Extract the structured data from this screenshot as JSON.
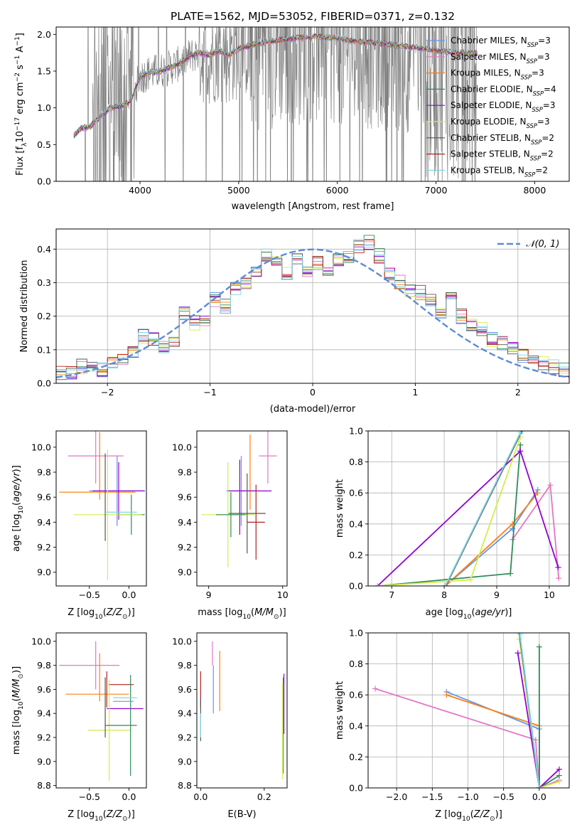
{
  "figure": {
    "title": "PLATE=1562, MJD=53052, FIBERID=0371, z=0.132"
  },
  "chart_data": [
    {
      "id": "spectrum",
      "type": "line",
      "title": "PLATE=1562, MJD=53052, FIBERID=0371, z=0.132",
      "xlabel": "wavelength [Angstrom, rest frame]",
      "ylabel": "Flux [f_λ 10^-17 erg cm^-2 s^-1 A^-1]",
      "xlim": [
        3150,
        8350
      ],
      "ylim": [
        0,
        2.1
      ],
      "xticks": [
        4000,
        5000,
        6000,
        7000,
        8000
      ],
      "yticks": [
        0.0,
        0.5,
        1.0,
        1.5,
        2.0
      ],
      "grid": false,
      "legend_position": "top-right",
      "data_color": "#808080",
      "continuum": {
        "x": [
          3330,
          3400,
          3500,
          3600,
          3700,
          3800,
          3900,
          4000,
          4100,
          4200,
          4300,
          4400,
          4500,
          4600,
          4700,
          4800,
          4900,
          5000,
          5200,
          5400,
          5600,
          5800,
          6000,
          6200,
          6400,
          6600,
          6800,
          7000,
          7200,
          7400
        ],
        "y": [
          0.62,
          0.72,
          0.75,
          0.88,
          1.0,
          1.02,
          1.08,
          1.42,
          1.48,
          1.5,
          1.55,
          1.6,
          1.7,
          1.75,
          1.72,
          1.78,
          1.72,
          1.8,
          1.88,
          1.92,
          1.95,
          1.97,
          1.95,
          1.9,
          1.88,
          1.85,
          1.82,
          1.78,
          1.75,
          1.74
        ]
      },
      "series": [
        {
          "name": "Chabrier MILES, N_SSP=3",
          "color": "#6495ed"
        },
        {
          "name": "Salpeter MILES, N_SSP=3",
          "color": "#e377c2"
        },
        {
          "name": "Kroupa MILES, N_SSP=3",
          "color": "#ff7f0e"
        },
        {
          "name": "Chabrier ELODIE, N_SSP=4",
          "color": "#2e8b57"
        },
        {
          "name": "Salpeter ELODIE, N_SSP=3",
          "color": "#9400d3"
        },
        {
          "name": "Kroupa ELODIE, N_SSP=3",
          "color": "#d4ed4a"
        },
        {
          "name": "Chabrier STELIB, N_SSP=2",
          "color": "#555555"
        },
        {
          "name": "Salpeter STELIB, N_SSP=2",
          "color": "#b22222"
        },
        {
          "name": "Kroupa STELIB, N_SSP=2",
          "color": "#7fd8e6"
        }
      ]
    },
    {
      "id": "residuals",
      "type": "line",
      "xlabel": "(data-model)/error",
      "ylabel": "Normed distribution",
      "xlim": [
        -2.5,
        2.5
      ],
      "ylim": [
        0,
        0.46
      ],
      "xticks": [
        -2,
        -1,
        0,
        1,
        2
      ],
      "yticks": [
        0.0,
        0.1,
        0.2,
        0.3,
        0.4
      ],
      "grid": true,
      "legend_position": "top-right",
      "reference_curve": {
        "name": "N(0,1)",
        "color": "#5b8bd9",
        "style": "dashed"
      },
      "bin_edges": [
        -2.5,
        -2.4,
        -2.3,
        -2.2,
        -2.1,
        -2.0,
        -1.9,
        -1.8,
        -1.7,
        -1.6,
        -1.5,
        -1.4,
        -1.3,
        -1.2,
        -1.1,
        -1.0,
        -0.9,
        -0.8,
        -0.7,
        -0.6,
        -0.5,
        -0.4,
        -0.3,
        -0.2,
        -0.1,
        0.0,
        0.1,
        0.2,
        0.3,
        0.4,
        0.5,
        0.6,
        0.7,
        0.8,
        0.9,
        1.0,
        1.1,
        1.2,
        1.3,
        1.4,
        1.5,
        1.6,
        1.7,
        1.8,
        1.9,
        2.0,
        2.1,
        2.2,
        2.3,
        2.4,
        2.5
      ],
      "hist_base": [
        0.03,
        0.03,
        0.05,
        0.05,
        0.04,
        0.06,
        0.07,
        0.09,
        0.14,
        0.13,
        0.11,
        0.12,
        0.21,
        0.18,
        0.19,
        0.25,
        0.23,
        0.28,
        0.3,
        0.33,
        0.38,
        0.36,
        0.33,
        0.37,
        0.34,
        0.36,
        0.33,
        0.37,
        0.38,
        0.41,
        0.42,
        0.38,
        0.33,
        0.3,
        0.28,
        0.27,
        0.25,
        0.21,
        0.27,
        0.2,
        0.17,
        0.16,
        0.13,
        0.12,
        0.1,
        0.08,
        0.08,
        0.06,
        0.05,
        0.04
      ],
      "hist_colors": [
        "#6495ed",
        "#e377c2",
        "#ff7f0e",
        "#2e8b57",
        "#9400d3",
        "#d4ed4a",
        "#555555",
        "#b22222",
        "#7fd8e6"
      ]
    },
    {
      "id": "age-vs-Z",
      "type": "scatter",
      "xlabel": "Z [log10(Z/Z⊙)]",
      "ylabel": "age [log10(age/yr)]",
      "xlim": [
        -0.92,
        0.22
      ],
      "ylim": [
        8.89,
        10.13
      ],
      "xticks": [
        -0.5,
        0.0
      ],
      "yticks": [
        9.0,
        9.2,
        9.4,
        9.6,
        9.8,
        10.0
      ],
      "errorbars": [
        {
          "x": -0.15,
          "y": 9.65,
          "xerr": 0.35,
          "yerr": 0.28,
          "color": "#6495ed"
        },
        {
          "x": -0.42,
          "y": 9.93,
          "xerr": 0.35,
          "yerr": 0.22,
          "color": "#e377c2"
        },
        {
          "x": -0.37,
          "y": 9.85,
          "xerr": 0.0,
          "yerr": 0.27,
          "color": "#ff7f0e"
        },
        {
          "x": -0.4,
          "y": 9.64,
          "xerr": 0.48,
          "yerr": 0.0,
          "color": "#ff7f0e"
        },
        {
          "x": 0.03,
          "y": 9.46,
          "xerr": 0.17,
          "yerr": 0.16,
          "color": "#2e8b57"
        },
        {
          "x": -0.13,
          "y": 9.65,
          "xerr": 0.33,
          "yerr": 0.23,
          "color": "#9400d3"
        },
        {
          "x": -0.27,
          "y": 9.46,
          "xerr": 0.43,
          "yerr": 0.52,
          "color": "#d4ed4a"
        },
        {
          "x": -0.3,
          "y": 9.6,
          "xerr": 0.0,
          "yerr": 0.35,
          "color": "#555555"
        },
        {
          "x": -0.1,
          "y": 9.48,
          "xerr": 0.2,
          "yerr": 0.0,
          "color": "#7fd8e6"
        }
      ]
    },
    {
      "id": "age-vs-mass",
      "type": "scatter",
      "xlabel": "mass [log10(M/M⊙)]",
      "ylabel": "",
      "xlim": [
        8.84,
        10.06
      ],
      "ylim": [
        8.89,
        10.13
      ],
      "xticks": [
        9,
        10
      ],
      "yticks": [
        9.0,
        9.2,
        9.4,
        9.6,
        9.8,
        10.0
      ],
      "errorbars": [
        {
          "x": 9.44,
          "y": 9.65,
          "xerr": 0.2,
          "yerr": 0.28,
          "color": "#6495ed"
        },
        {
          "x": 9.8,
          "y": 9.93,
          "xerr": 0.12,
          "yerr": 0.22,
          "color": "#e377c2"
        },
        {
          "x": 9.56,
          "y": 9.8,
          "xerr": 0.0,
          "yerr": 0.3,
          "color": "#ff7f0e"
        },
        {
          "x": 9.55,
          "y": 9.65,
          "xerr": 0.3,
          "yerr": 0.0,
          "color": "#9400d3"
        },
        {
          "x": 9.42,
          "y": 9.6,
          "xerr": 0.0,
          "yerr": 0.3,
          "color": "#9400d3"
        },
        {
          "x": 9.26,
          "y": 9.46,
          "xerr": 0.36,
          "yerr": 0.42,
          "color": "#d4ed4a"
        },
        {
          "x": 9.52,
          "y": 9.47,
          "xerr": 0.25,
          "yerr": 0.32,
          "color": "#555555"
        },
        {
          "x": 9.64,
          "y": 9.4,
          "xerr": 0.12,
          "yerr": 0.3,
          "color": "#b22222"
        },
        {
          "x": 9.3,
          "y": 9.46,
          "xerr": 0.2,
          "yerr": 0.18,
          "color": "#2e8b57"
        }
      ]
    },
    {
      "id": "massweight-vs-age",
      "type": "line",
      "xlabel": "age [log10(age/yr)]",
      "ylabel": "mass weight",
      "xlim": [
        6.55,
        10.38
      ],
      "ylim": [
        0,
        1
      ],
      "xticks": [
        7,
        8,
        9,
        10
      ],
      "yticks": [
        0.0,
        0.2,
        0.4,
        0.6,
        0.8,
        1.0
      ],
      "grid": true,
      "series": [
        {
          "name": "Chabrier MILES",
          "color": "#6495ed",
          "x": [
            8.02,
            9.3,
            9.78
          ],
          "y": [
            0.0,
            0.37,
            0.62
          ]
        },
        {
          "name": "Salpeter MILES",
          "color": "#e377c2",
          "x": [
            9.3,
            10.02,
            10.18
          ],
          "y": [
            0.3,
            0.65,
            0.05
          ]
        },
        {
          "name": "Kroupa MILES",
          "color": "#ff7f0e",
          "x": [
            8.02,
            9.3,
            9.78
          ],
          "y": [
            0.0,
            0.4,
            0.6
          ]
        },
        {
          "name": "Chabrier ELODIE",
          "color": "#2e8b57",
          "x": [
            6.73,
            9.26,
            9.45
          ],
          "y": [
            0.0,
            0.08,
            0.91
          ]
        },
        {
          "name": "Salpeter ELODIE",
          "color": "#9400d3",
          "x": [
            6.73,
            9.45,
            10.17
          ],
          "y": [
            0.0,
            0.87,
            0.12
          ]
        },
        {
          "name": "Kroupa ELODIE",
          "color": "#d4ed4a",
          "x": [
            6.73,
            8.5,
            9.45
          ],
          "y": [
            0.0,
            0.04,
            0.96
          ]
        },
        {
          "name": "Chabrier STELIB",
          "color": "#555555",
          "x": [
            8.03,
            9.48
          ],
          "y": [
            0.0,
            1.0
          ]
        },
        {
          "name": "Kroupa STELIB",
          "color": "#7fd8e6",
          "x": [
            8.02,
            9.45
          ],
          "y": [
            0.0,
            0.99
          ]
        }
      ]
    },
    {
      "id": "mass-vs-Z",
      "type": "scatter",
      "xlabel": "Z [log10(Z/Z⊙)]",
      "ylabel": "mass [log10(M/M⊙)]",
      "xlim": [
        -0.92,
        0.22
      ],
      "ylim": [
        8.78,
        10.07
      ],
      "xticks": [
        -0.5,
        0.0
      ],
      "yticks": [
        8.8,
        9.0,
        9.2,
        9.4,
        9.6,
        9.8,
        10.0
      ],
      "errorbars": [
        {
          "x": -0.5,
          "y": 9.8,
          "xerr": 0.38,
          "yerr": 0.0,
          "color": "#e377c2"
        },
        {
          "x": -0.42,
          "y": 9.8,
          "xerr": 0.0,
          "yerr": 0.2,
          "color": "#e377c2"
        },
        {
          "x": -0.4,
          "y": 9.56,
          "xerr": 0.4,
          "yerr": 0.0,
          "color": "#ff7f0e"
        },
        {
          "x": -0.37,
          "y": 9.7,
          "xerr": 0.0,
          "yerr": 0.2,
          "color": "#ff7f0e"
        },
        {
          "x": -0.1,
          "y": 9.64,
          "xerr": 0.16,
          "yerr": 0.0,
          "color": "#b22222"
        },
        {
          "x": -0.28,
          "y": 9.6,
          "xerr": 0.0,
          "yerr": 0.15,
          "color": "#b22222"
        },
        {
          "x": -0.05,
          "y": 9.44,
          "xerr": 0.23,
          "yerr": 0.0,
          "color": "#9400d3"
        },
        {
          "x": -0.25,
          "y": 9.26,
          "xerr": 0.27,
          "yerr": 0.42,
          "color": "#d4ed4a"
        },
        {
          "x": -0.1,
          "y": 9.3,
          "xerr": 0.2,
          "yerr": 0.0,
          "color": "#2e8b57"
        },
        {
          "x": 0.02,
          "y": 9.3,
          "xerr": 0.0,
          "yerr": 0.42,
          "color": "#2e8b57"
        },
        {
          "x": -0.07,
          "y": 9.5,
          "xerr": 0.13,
          "yerr": 0.0,
          "color": "#6495ed"
        },
        {
          "x": -0.3,
          "y": 9.45,
          "xerr": 0.0,
          "yerr": 0.25,
          "color": "#555555"
        },
        {
          "x": -0.05,
          "y": 9.53,
          "xerr": 0.15,
          "yerr": 0.0,
          "color": "#7fd8e6"
        }
      ]
    },
    {
      "id": "mass-vs-EBV",
      "type": "scatter",
      "xlabel": "E(B-V)",
      "ylabel": "",
      "xlim": [
        -0.012,
        0.272
      ],
      "ylim": [
        8.78,
        10.07
      ],
      "xticks": [
        0.0,
        0.2
      ],
      "yticks": [
        8.8,
        9.0,
        9.2,
        9.4,
        9.6,
        9.8,
        10.0
      ],
      "errorbars": [
        {
          "x": 0.0,
          "y": 9.6,
          "xerr": 0.0,
          "yerr": 0.15,
          "color": "#b22222"
        },
        {
          "x": 0.0,
          "y": 9.35,
          "xerr": 0.0,
          "yerr": 0.18,
          "color": "#555555"
        },
        {
          "x": 0.0,
          "y": 9.3,
          "xerr": 0.0,
          "yerr": 0.1,
          "color": "#7fd8e6"
        },
        {
          "x": 0.037,
          "y": 9.9,
          "xerr": 0.0,
          "yerr": 0.1,
          "color": "#e377c2"
        },
        {
          "x": 0.04,
          "y": 9.6,
          "xerr": 0.0,
          "yerr": 0.2,
          "color": "#6495ed"
        },
        {
          "x": 0.06,
          "y": 9.67,
          "xerr": 0.0,
          "yerr": 0.25,
          "color": "#ff7f0e"
        },
        {
          "x": 0.262,
          "y": 9.48,
          "xerr": 0.0,
          "yerr": 0.25,
          "color": "#9400d3"
        },
        {
          "x": 0.26,
          "y": 9.3,
          "xerr": 0.0,
          "yerr": 0.4,
          "color": "#2e8b57"
        },
        {
          "x": 0.258,
          "y": 9.25,
          "xerr": 0.0,
          "yerr": 0.4,
          "color": "#d4ed4a"
        }
      ]
    },
    {
      "id": "massweight-vs-Z",
      "type": "line",
      "xlabel": "Z [log10(Z/Z⊙)]",
      "ylabel": "mass weight",
      "xlim": [
        -2.4,
        0.42
      ],
      "ylim": [
        0,
        1
      ],
      "xticks": [
        -2.0,
        -1.5,
        -1.0,
        -0.5,
        0.0
      ],
      "yticks": [
        0.0,
        0.2,
        0.4,
        0.6,
        0.8,
        1.0
      ],
      "grid": true,
      "series": [
        {
          "name": "Chabrier MILES",
          "color": "#6495ed",
          "x": [
            -1.3,
            0.0,
            0.0
          ],
          "y": [
            0.62,
            0.38,
            0.0
          ]
        },
        {
          "name": "Salpeter MILES",
          "color": "#e377c2",
          "x": [
            -2.3,
            -0.05,
            0.0,
            0.28
          ],
          "y": [
            0.64,
            0.31,
            0.0,
            0.05
          ]
        },
        {
          "name": "Kroupa MILES",
          "color": "#ff7f0e",
          "x": [
            -1.3,
            0.0,
            0.0
          ],
          "y": [
            0.6,
            0.4,
            0.0
          ]
        },
        {
          "name": "Chabrier ELODIE",
          "color": "#2e8b57",
          "x": [
            0.0,
            0.0,
            0.28
          ],
          "y": [
            0.91,
            0.0,
            0.08
          ]
        },
        {
          "name": "Salpeter ELODIE",
          "color": "#9400d3",
          "x": [
            -0.3,
            0.0,
            0.28
          ],
          "y": [
            0.87,
            0.0,
            0.12
          ]
        },
        {
          "name": "Kroupa ELODIE",
          "color": "#d4ed4a",
          "x": [
            -0.28,
            0.0,
            0.28
          ],
          "y": [
            0.96,
            0.0,
            0.04
          ]
        },
        {
          "name": "Chabrier STELIB",
          "color": "#555555",
          "x": [
            -0.28,
            0.0
          ],
          "y": [
            1.0,
            0.0
          ]
        },
        {
          "name": "Kroupa STELIB",
          "color": "#7fd8e6",
          "x": [
            -0.27,
            0.0
          ],
          "y": [
            0.99,
            0.0
          ]
        }
      ]
    }
  ]
}
